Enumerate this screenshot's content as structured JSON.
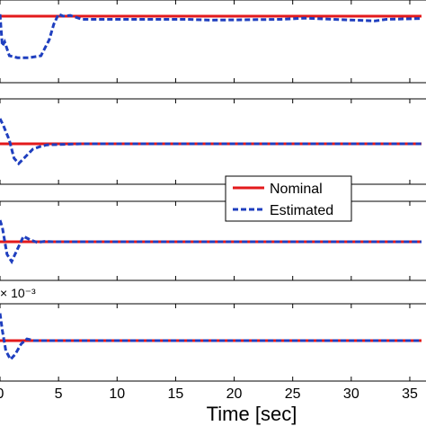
{
  "chart_data": {
    "type": "line",
    "xlabel": "Time [sec]",
    "x_ticks": [
      0,
      5,
      10,
      15,
      20,
      25,
      30,
      35
    ],
    "xlim": [
      0,
      36
    ],
    "legend": {
      "placement": "center-right",
      "entries": [
        {
          "name": "Nominal",
          "color": "#e31a1c",
          "style": "solid"
        },
        {
          "name": "Estimated",
          "color": "#1f3fbf",
          "style": "dashed"
        }
      ]
    },
    "subplots": [
      {
        "ylim": [
          -1,
          1
        ],
        "annotation": "",
        "series": [
          {
            "name": "Nominal",
            "x": [
              0,
              36
            ],
            "y": [
              0,
              0
            ]
          },
          {
            "name": "Estimated",
            "x": [
              0,
              0.2,
              0.4,
              0.8,
              1.5,
              2.5,
              3.5,
              4.2,
              4.6,
              5.0,
              5.4,
              6.0,
              7.0,
              8.0,
              12.0,
              16.0,
              18.0,
              24.0,
              26.0,
              32.0,
              33.0,
              36.0
            ],
            "y": [
              0.05,
              -0.75,
              -0.65,
              -1.0,
              -1.05,
              -1.05,
              -1.0,
              -0.6,
              -0.2,
              0.05,
              0.0,
              0.02,
              -0.08,
              -0.08,
              -0.08,
              -0.08,
              -0.1,
              -0.08,
              -0.05,
              -0.12,
              -0.08,
              -0.06
            ]
          }
        ]
      },
      {
        "ylim": [
          -1,
          1
        ],
        "annotation": "",
        "series": [
          {
            "name": "Nominal",
            "x": [
              0,
              36
            ],
            "y": [
              0,
              0
            ]
          },
          {
            "name": "Estimated",
            "x": [
              0,
              0.3,
              0.8,
              1.2,
              1.6,
              2.2,
              2.8,
              3.4,
              4.0,
              5.0,
              7.0,
              10.0,
              36.0
            ],
            "y": [
              0.7,
              0.5,
              0.1,
              -0.4,
              -0.55,
              -0.35,
              -0.15,
              -0.08,
              -0.03,
              -0.02,
              0.0,
              0.0,
              0.0
            ]
          }
        ]
      },
      {
        "ylim": [
          -1,
          1
        ],
        "annotation": "",
        "series": [
          {
            "name": "Nominal",
            "x": [
              0,
              36
            ],
            "y": [
              0,
              0
            ]
          },
          {
            "name": "Estimated",
            "x": [
              0,
              0.2,
              0.6,
              1.0,
              1.5,
              2.0,
              2.6,
              3.2,
              3.8,
              4.5,
              5.5,
              36.0
            ],
            "y": [
              0.6,
              0.4,
              -0.35,
              -0.55,
              -0.2,
              0.15,
              0.05,
              -0.02,
              0.01,
              0.0,
              0.0,
              0.0
            ]
          }
        ]
      },
      {
        "ylim": [
          -1,
          1
        ],
        "annotation": "× 10⁻³",
        "series": [
          {
            "name": "Nominal",
            "x": [
              0,
              36
            ],
            "y": [
              0,
              0
            ]
          },
          {
            "name": "Estimated",
            "x": [
              0,
              0.2,
              0.5,
              0.9,
              1.3,
              1.8,
              2.3,
              2.9,
              3.5,
              4.5,
              36.0
            ],
            "y": [
              0.8,
              0.3,
              -0.3,
              -0.55,
              -0.4,
              -0.1,
              0.05,
              0.0,
              0.0,
              0.0,
              0.0
            ]
          }
        ]
      }
    ]
  }
}
